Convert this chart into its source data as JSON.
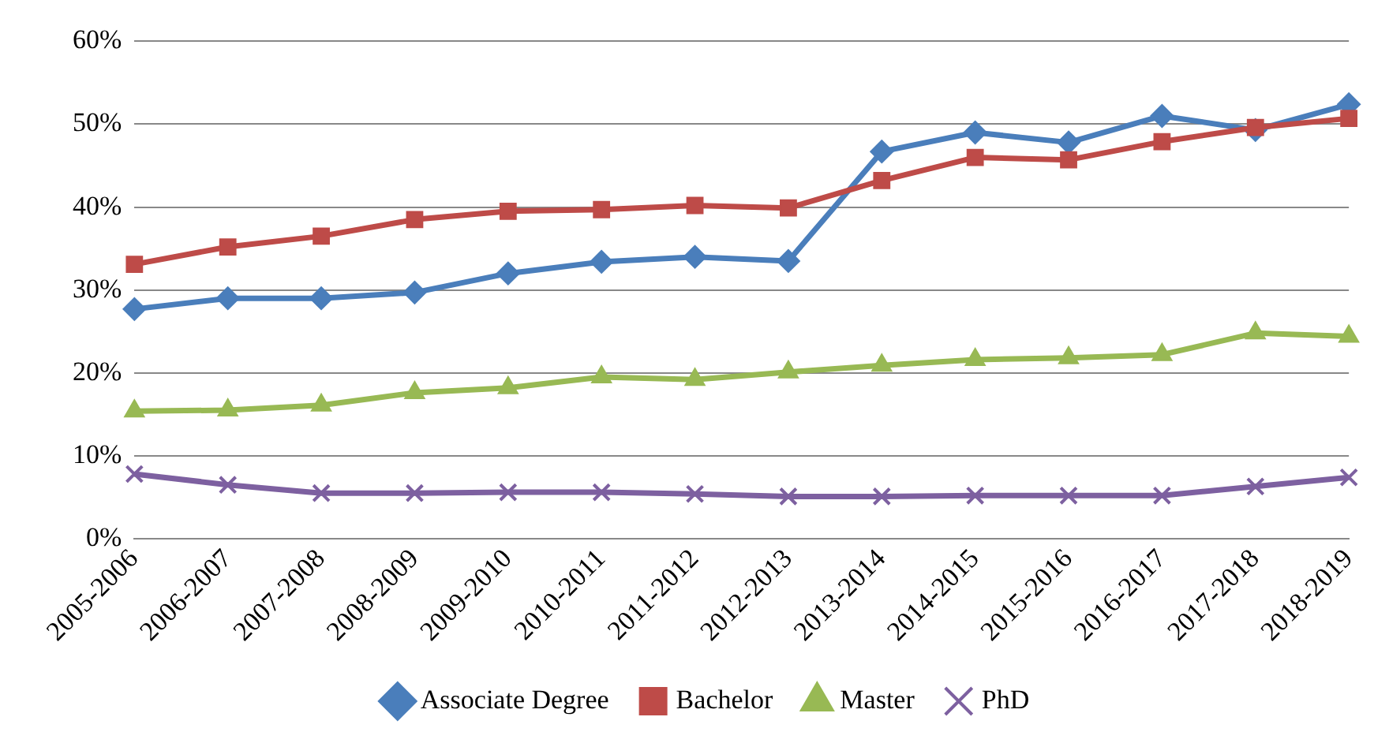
{
  "chart_data": {
    "type": "line",
    "categories": [
      "2005-2006",
      "2006-2007",
      "2007-2008",
      "2008-2009",
      "2009-2010",
      "2010-2011",
      "2011-2012",
      "2012-2013",
      "2013-2014",
      "2014-2015",
      "2015-2016",
      "2016-2017",
      "2017-2018",
      "2018-2019"
    ],
    "series": [
      {
        "name": "Associate Degree",
        "color": "#4a7ebb",
        "marker": "diamond",
        "values": [
          27.7,
          29,
          29,
          29.7,
          32,
          33.4,
          34,
          33.5,
          46.7,
          49,
          47.8,
          51,
          49.3,
          52.4
        ]
      },
      {
        "name": "Bachelor",
        "color": "#be4b48",
        "marker": "square",
        "values": [
          33.1,
          35.2,
          36.5,
          38.5,
          39.5,
          39.7,
          40.2,
          39.9,
          43.2,
          46,
          45.7,
          47.9,
          49.6,
          50.7
        ]
      },
      {
        "name": "Master",
        "color": "#98b954",
        "marker": "triangle",
        "values": [
          15.4,
          15.5,
          16.1,
          17.6,
          18.2,
          19.5,
          19.2,
          20.1,
          20.9,
          21.6,
          21.8,
          22.2,
          24.8,
          24.4
        ]
      },
      {
        "name": "PhD",
        "color": "#7d60a0",
        "marker": "cross",
        "values": [
          7.8,
          6.5,
          5.5,
          5.5,
          5.6,
          5.6,
          5.4,
          5.1,
          5.1,
          5.2,
          5.2,
          5.2,
          6.3,
          7.4
        ]
      }
    ],
    "ylim": [
      0,
      60
    ],
    "yticks": [
      {
        "value": 0,
        "label": "0%"
      },
      {
        "value": 10,
        "label": "10%"
      },
      {
        "value": 20,
        "label": "20%"
      },
      {
        "value": 30,
        "label": "30%"
      },
      {
        "value": 40,
        "label": "40%"
      },
      {
        "value": 50,
        "label": "50%"
      },
      {
        "value": 60,
        "label": "60%"
      }
    ],
    "grid": "y",
    "legend": "bottom",
    "line_style": "solid"
  }
}
